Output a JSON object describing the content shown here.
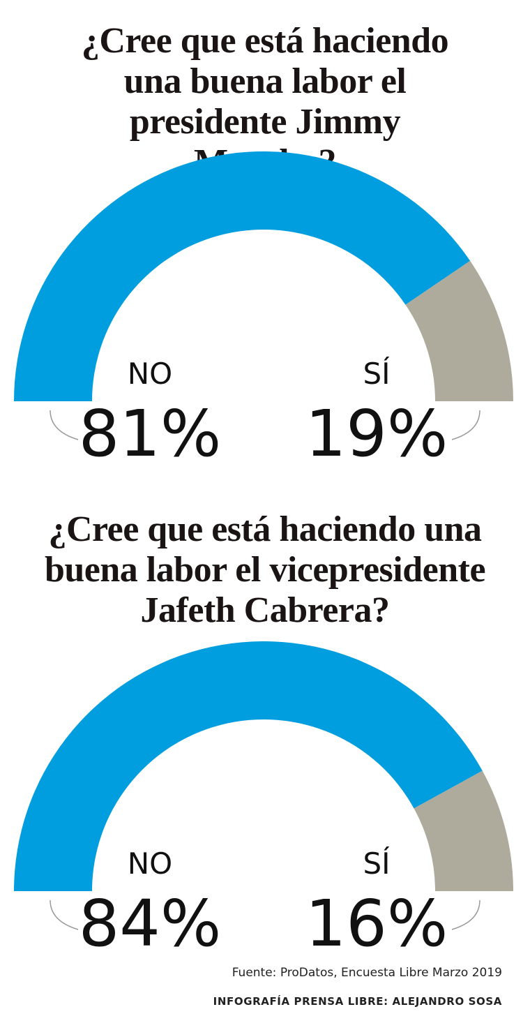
{
  "chart_data": [
    {
      "type": "half-donut",
      "title": "¿Cree que está haciendo una buena labor el presidente Jimmy Morales?",
      "categories": [
        "NO",
        "SÍ"
      ],
      "values": [
        81,
        19
      ],
      "value_labels": [
        "81%",
        "19%"
      ],
      "colors": [
        "#009ddf",
        "#aeab9c"
      ]
    },
    {
      "type": "half-donut",
      "title": "¿Cree que está haciendo una buena labor el vicepresidente Jafeth Cabrera?",
      "categories": [
        "NO",
        "SÍ"
      ],
      "values": [
        84,
        16
      ],
      "value_labels": [
        "84%",
        "16%"
      ],
      "colors": [
        "#009ddf",
        "#aeab9c"
      ]
    }
  ],
  "footer": {
    "source": "Fuente: ProDatos, Encuesta Libre Marzo 2019",
    "credit": "INFOGRAFÍA PRENSA LIBRE: ALEJANDRO SOSA"
  }
}
